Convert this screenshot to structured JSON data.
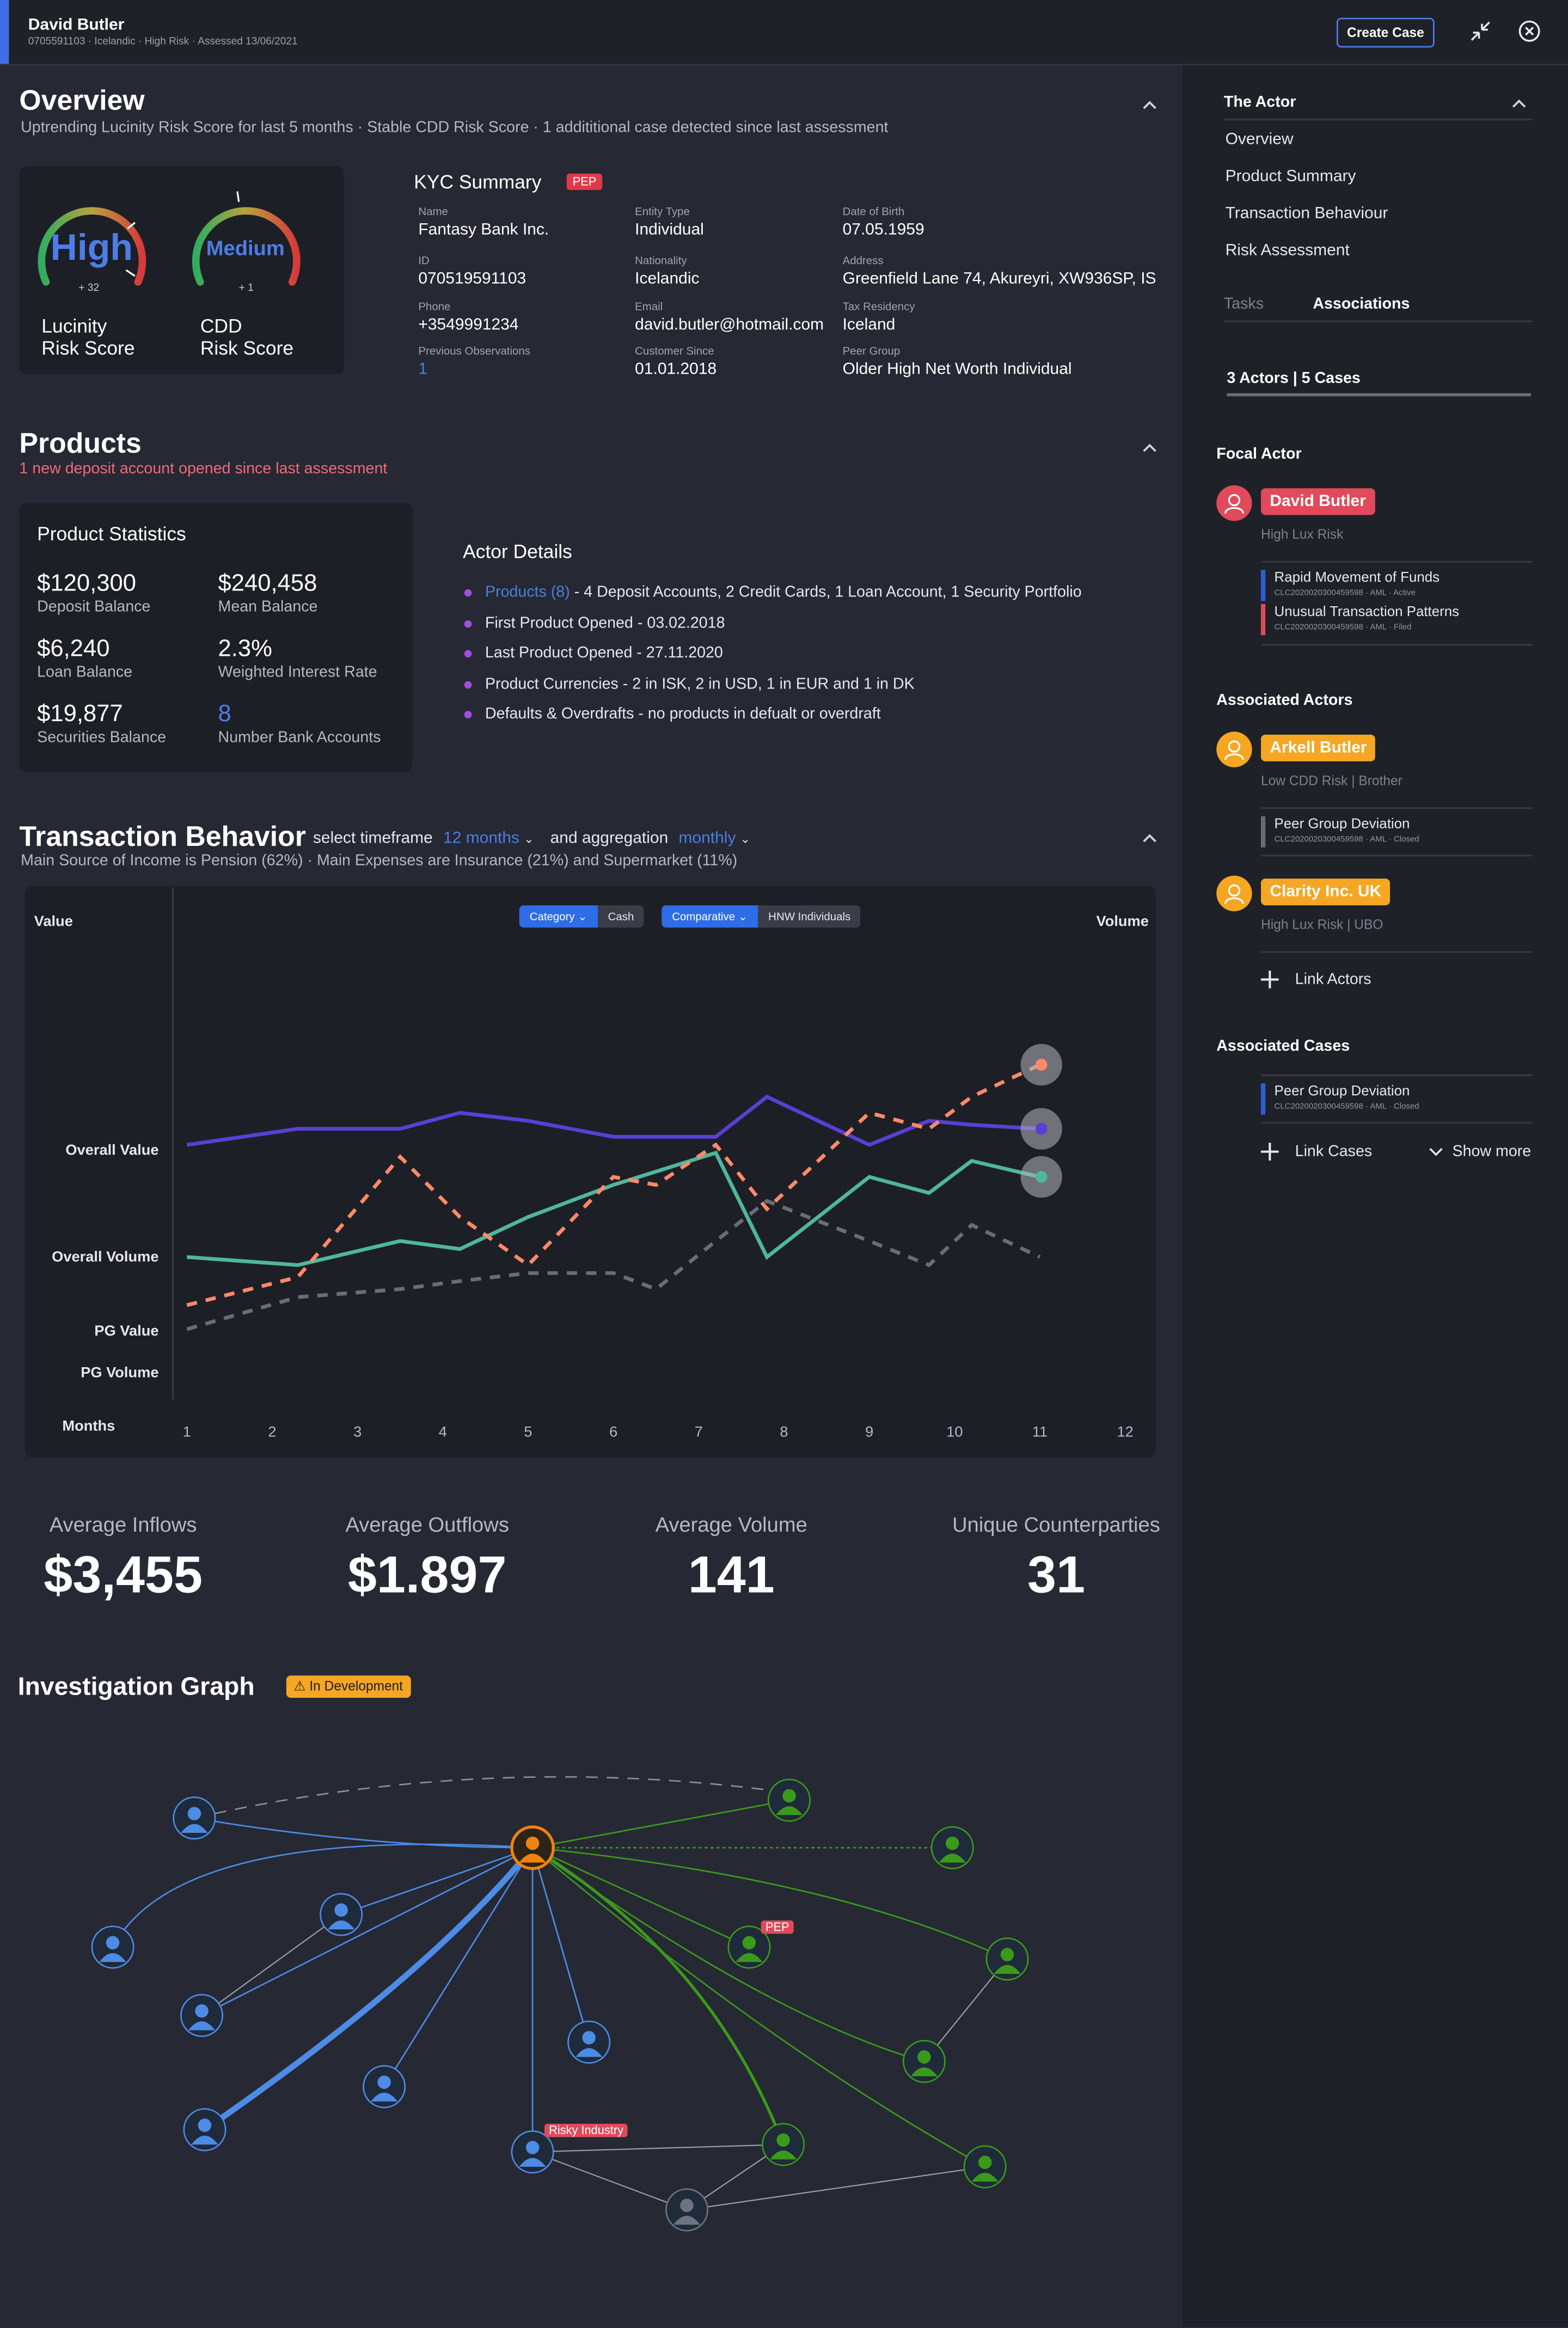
{
  "header": {
    "name": "David Butler",
    "meta": "0705591103 · Icelandic · High Risk · Assessed 13/06/2021",
    "create_case": "Create Case"
  },
  "overview": {
    "title": "Overview",
    "subtitle": "Uptrending Lucinity Risk Score for last 5 months · Stable CDD Risk Score · 1 addititional case detected since last assessment",
    "gauge1": {
      "word": "High",
      "delta": "+ 32",
      "label1": "Lucinity",
      "label2": "Risk Score"
    },
    "gauge2": {
      "word": "Medium",
      "delta": "+ 1",
      "label1": "CDD",
      "label2": "Risk Score"
    },
    "kyc_title": "KYC Summary",
    "kyc_badge": "PEP",
    "fields": [
      {
        "label": "Name",
        "value": "Fantasy Bank Inc."
      },
      {
        "label": "Entity Type",
        "value": "Individual"
      },
      {
        "label": "Date of Birth",
        "value": "07.05.1959"
      },
      {
        "label": "ID",
        "value": "070519591103"
      },
      {
        "label": "Nationality",
        "value": "Icelandic"
      },
      {
        "label": "Address",
        "value": "Greenfield Lane 74, Akureyri, XW936SP, IS"
      },
      {
        "label": "Phone",
        "value": "+3549991234"
      },
      {
        "label": "Email",
        "value": "david.butler@hotmail.com"
      },
      {
        "label": "Tax Residency",
        "value": "Iceland"
      },
      {
        "label": "Previous Observations",
        "value": "1"
      },
      {
        "label": "Customer Since",
        "value": "01.01.2018"
      },
      {
        "label": "Peer Group",
        "value": "Older High Net Worth Individual"
      }
    ]
  },
  "products": {
    "title": "Products",
    "subtitle": "1 new deposit account opened since last assessment",
    "stats_title": "Product Statistics",
    "stats": [
      {
        "value": "$120,300",
        "label": "Deposit Balance"
      },
      {
        "value": "$240,458",
        "label": "Mean Balance"
      },
      {
        "value": "$6,240",
        "label": "Loan Balance"
      },
      {
        "value": "2.3%",
        "label": "Weighted Interest Rate"
      },
      {
        "value": "$19,877",
        "label": "Securities Balance"
      },
      {
        "value": "8",
        "label": "Number Bank Accounts"
      }
    ],
    "details_title": "Actor Details",
    "products_link": "Products (8)",
    "details": [
      " - 4 Deposit Accounts, 2 Credit Cards, 1 Loan Account, 1 Security Portfolio",
      "First Product Opened - 03.02.2018",
      "Last Product Opened - 27.11.2020",
      "Product Currencies - 2 in ISK, 2 in USD, 1 in EUR and 1 in DK",
      "Defaults & Overdrafts - no products in defualt or overdraft"
    ]
  },
  "transactions": {
    "title": "Transaction Behavior",
    "select_label": "select timeframe",
    "timeframe": "12 months",
    "agg_label": "and aggregation",
    "aggregation": "monthly",
    "subtitle": "Main Source of Income is Pension (62%)  · Main Expenses are Insurance (21%) and Supermarket (11%)",
    "filter1": "Category",
    "filter1_alt": "Cash",
    "filter2": "Comparative",
    "filter2_alt": "HNW Individuals"
  },
  "chart_data": {
    "type": "line",
    "y_left_label": "Value",
    "y_right_label": "Volume",
    "x_label": "Months",
    "categories": [
      "1",
      "2",
      "3",
      "4",
      "5",
      "6",
      "7",
      "8",
      "9",
      "10",
      "11",
      "12"
    ],
    "row_labels": [
      "Overall Value",
      "Overall Volume",
      "PG Value",
      "PG Volume"
    ],
    "ylim": [
      0,
      100
    ],
    "series": [
      {
        "name": "Overall Value",
        "style": "solid",
        "color": "#5a3fd6",
        "x": [
          1,
          2.3,
          3.5,
          4.2,
          5.0,
          6.0,
          7.2,
          7.8,
          9.0,
          9.7,
          10.2,
          11.0
        ],
        "values": [
          58,
          62,
          62,
          66,
          64,
          60,
          60,
          70,
          58,
          64,
          63,
          62
        ]
      },
      {
        "name": "Overall Volume",
        "style": "solid",
        "color": "#4fb79a",
        "x": [
          1,
          2.3,
          3.5,
          4.2,
          5.0,
          6.0,
          7.2,
          7.8,
          9.0,
          9.7,
          10.2,
          11.0
        ],
        "values": [
          30,
          28,
          34,
          32,
          40,
          48,
          56,
          30,
          50,
          46,
          54,
          50
        ]
      },
      {
        "name": "PG Value",
        "style": "dashed",
        "color": "#ff8a6a",
        "x": [
          1,
          2.3,
          3.5,
          4.2,
          5.0,
          6.0,
          6.5,
          7.2,
          7.8,
          9.0,
          9.7,
          10.2,
          11.0
        ],
        "values": [
          18,
          25,
          55,
          40,
          28,
          50,
          48,
          58,
          42,
          66,
          62,
          70,
          78
        ]
      },
      {
        "name": "PG Volume",
        "style": "dashed",
        "color": "#6b6d75",
        "x": [
          1,
          2.3,
          3.5,
          4.2,
          5.0,
          6.0,
          6.5,
          7.2,
          7.8,
          9.0,
          9.7,
          10.2,
          11.0
        ],
        "values": [
          12,
          20,
          22,
          24,
          26,
          26,
          22,
          34,
          44,
          34,
          28,
          38,
          30
        ]
      }
    ]
  },
  "kpis": [
    {
      "label": "Average Inflows",
      "value": "$3,455"
    },
    {
      "label": "Average Outflows",
      "value": "$1.897"
    },
    {
      "label": "Average Volume",
      "value": "141"
    },
    {
      "label": "Unique Counterparties",
      "value": "31"
    }
  ],
  "graph": {
    "title": "Investigation Graph",
    "badge": "In Development",
    "pep_label": "PEP",
    "risky_label": "Risky Industry"
  },
  "sidebar": {
    "section": "The Actor",
    "nav": [
      "Overview",
      "Product Summary",
      "Transaction Behaviour",
      "Risk Assessment"
    ],
    "tab_tasks": "Tasks",
    "tab_assoc": "Associations",
    "counts": "3 Actors | 5 Cases",
    "focal_title": "Focal Actor",
    "focal_name": "David Butler",
    "focal_sub": "High Lux Risk",
    "focal_cases": [
      {
        "title": "Rapid Movement of Funds",
        "sub": "CLC2020020300459598 · AML · Active",
        "color": "#2b5fd9"
      },
      {
        "title": "Unusual Transaction Patterns",
        "sub": "CLC2020020300459598 · AML · Filed",
        "color": "#e04a5a"
      }
    ],
    "assoc_title": "Associated Actors",
    "actors": [
      {
        "name": "Arkell Butler",
        "sub": "Low CDD Risk | Brother"
      },
      {
        "name": "Clarity Inc. UK",
        "sub": "High Lux Risk | UBO"
      }
    ],
    "actor_case": {
      "title": "Peer Group Deviation",
      "sub": "CLC2020020300459598 · AML · Closed",
      "color": "#6a6c74"
    },
    "link_actors": "Link Actors",
    "cases_title": "Associated Cases",
    "case": {
      "title": "Peer Group Deviation",
      "sub": "CLC2020020300459598 · AML · Closed",
      "color": "#2b5fd9"
    },
    "link_cases": "Link Cases",
    "show_more": "Show more"
  }
}
